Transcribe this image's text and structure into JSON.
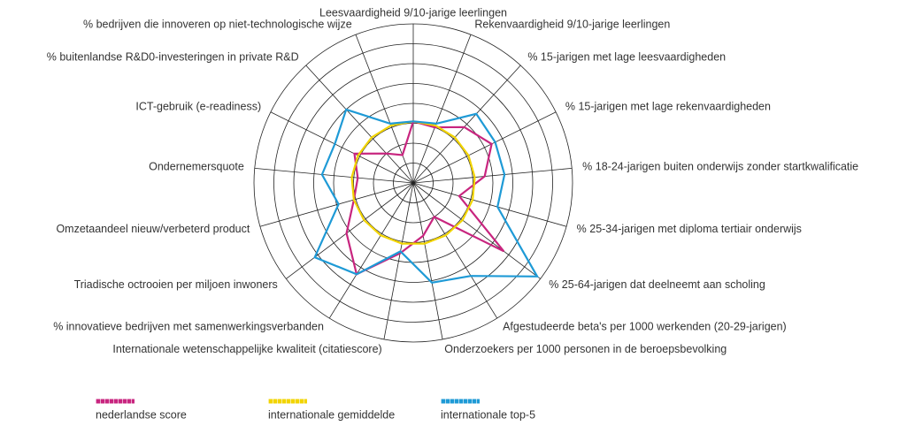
{
  "chart_data": {
    "type": "radar",
    "categories": [
      "Leesvaardigheid 9/10-jarige leerlingen",
      "Rekenvaardigheid 9/10-jarige leerlingen",
      "% 15-jarigen met lage leesvaardigheden",
      "% 15-jarigen met lage rekenvaardigheden",
      "% 18-24-jarigen buiten onderwijs zonder startkwalificatie",
      "% 25-34-jarigen met diploma tertiair onderwijs",
      "% 25-64-jarigen dat deelneemt aan scholing",
      "Afgestudeerde beta's per 1000 werkenden (20-29-jarigen)",
      "Onderzoekers per 1000 personen in de beroepsbevolking",
      "Internationale wetenschappelijke kwaliteit (citatiescore)",
      "% innovatieve bedrijven met samenwerkingsverbanden",
      "Triadische octrooien per miljoen inwoners",
      "Omzetaandeel nieuw/verbeterd product",
      "Ondernemersquote",
      "ICT-gebruik (e-readiness)",
      "% buitenlandse R&D0-investeringen in private R&D",
      "% bedrijven die innoveren op niet-technologische wijze"
    ],
    "series": [
      {
        "name": "nederlandse score",
        "color": "#c8257f",
        "values": [
          3.1,
          3.0,
          3.8,
          4.4,
          3.6,
          2.4,
          5.7,
          2.0,
          2.7,
          3.6,
          5.4,
          4.2,
          3.1,
          2.8,
          3.3,
          2.0,
          1.5
        ]
      },
      {
        "name": "internationale gemiddelde",
        "color": "#f2d400",
        "values": [
          3.1,
          3.1,
          3.1,
          3.1,
          3.1,
          3.1,
          3.1,
          3.1,
          3.1,
          3.1,
          3.1,
          3.1,
          3.1,
          3.1,
          3.1,
          3.1,
          3.1
        ]
      },
      {
        "name": "internationale top-5",
        "color": "#1e9ad6",
        "values": [
          3.1,
          3.2,
          4.7,
          4.6,
          4.6,
          4.4,
          7.8,
          5.5,
          5.1,
          3.5,
          5.4,
          6.2,
          3.9,
          4.6,
          4.4,
          5.0,
          3.2
        ]
      }
    ],
    "rlim": [
      0,
      8
    ],
    "rticks": [
      1,
      2,
      3,
      4,
      5,
      6,
      7,
      8
    ]
  }
}
